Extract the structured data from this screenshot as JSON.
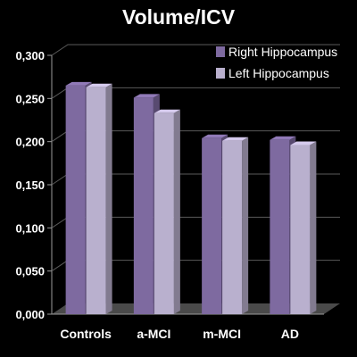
{
  "chart_data": {
    "type": "bar",
    "title": "Volume/ICV",
    "categories": [
      "Controls",
      "a-MCI",
      "m-MCI",
      "AD"
    ],
    "series": [
      {
        "name": "Right Hippocampus",
        "values": [
          0.265,
          0.251,
          0.204,
          0.202
        ],
        "color": "#7e6aa0"
      },
      {
        "name": "Left Hippocampus",
        "values": [
          0.263,
          0.233,
          0.201,
          0.196
        ],
        "color": "#b9b0ce"
      }
    ],
    "yticks": [
      "0,000",
      "0,050",
      "0,100",
      "0,150",
      "0,200",
      "0,250",
      "0,300"
    ],
    "ylim": [
      0,
      0.3
    ],
    "grid": true,
    "legend": "top-right",
    "xlabel": "",
    "ylabel": ""
  }
}
